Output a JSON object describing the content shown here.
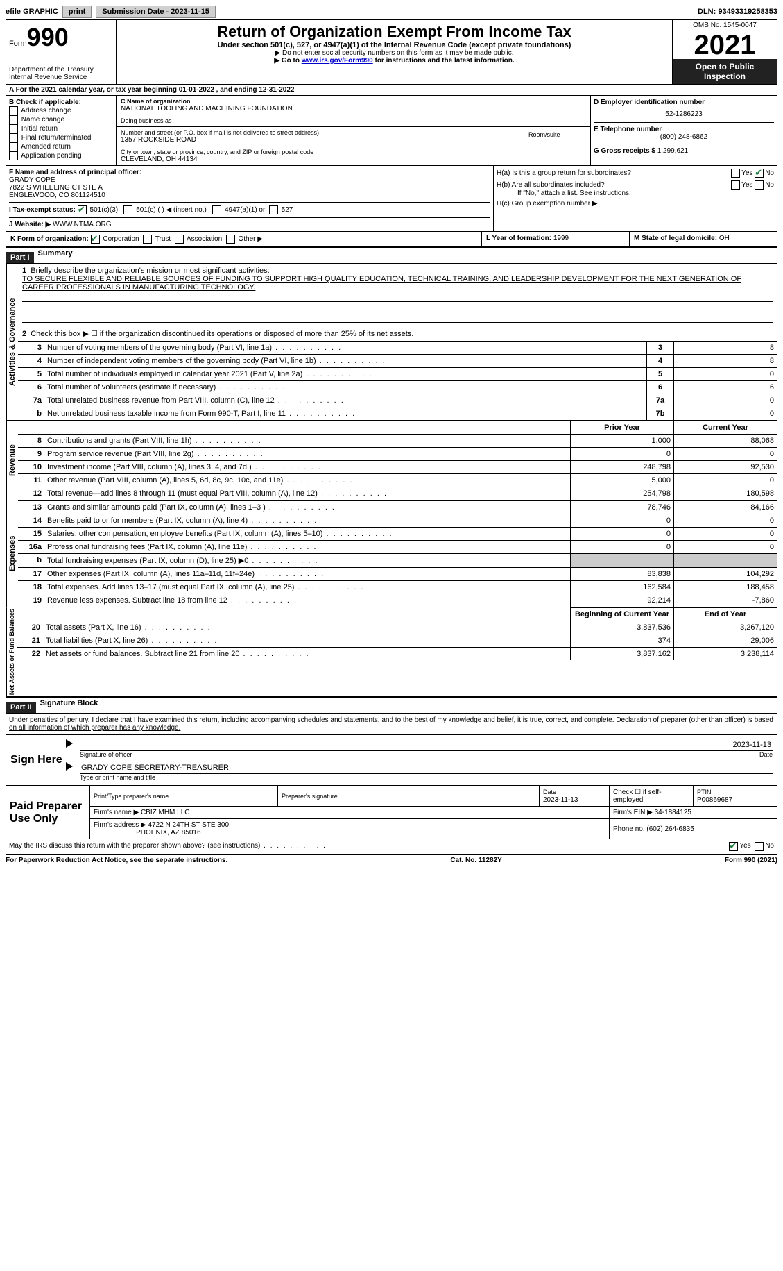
{
  "topbar": {
    "efile_label": "efile GRAPHIC",
    "print_btn": "print",
    "submission_label": "Submission Date - 2023-11-15",
    "dln_label": "DLN: 93493319258353"
  },
  "header": {
    "form_word": "Form",
    "form_number": "990",
    "dept": "Department of the Treasury",
    "irs": "Internal Revenue Service",
    "title": "Return of Organization Exempt From Income Tax",
    "subtitle": "Under section 501(c), 527, or 4947(a)(1) of the Internal Revenue Code (except private foundations)",
    "note1": "▶ Do not enter social security numbers on this form as it may be made public.",
    "note2_pre": "▶ Go to ",
    "note2_link": "www.irs.gov/Form990",
    "note2_post": " for instructions and the latest information.",
    "omb": "OMB No. 1545-0047",
    "year": "2021",
    "open_inspection": "Open to Public Inspection"
  },
  "section_a": "A For the 2021 calendar year, or tax year beginning 01-01-2022   , and ending 12-31-2022",
  "section_b": {
    "label": "B Check if applicable:",
    "items": [
      "Address change",
      "Name change",
      "Initial return",
      "Final return/terminated",
      "Amended return",
      "Application pending"
    ]
  },
  "section_c": {
    "name_label": "C Name of organization",
    "name": "NATIONAL TOOLING AND MACHINING FOUNDATION",
    "dba_label": "Doing business as",
    "addr_label": "Number and street (or P.O. box if mail is not delivered to street address)",
    "addr": "1357 ROCKSIDE ROAD",
    "room_label": "Room/suite",
    "city_label": "City or town, state or province, country, and ZIP or foreign postal code",
    "city": "CLEVELAND, OH  44134"
  },
  "section_d": {
    "label": "D Employer identification number",
    "ein": "52-1286223"
  },
  "section_e": {
    "label": "E Telephone number",
    "phone": "(800) 248-6862"
  },
  "section_g": {
    "label": "G Gross receipts $",
    "amount": "1,299,621"
  },
  "section_f": {
    "label": "F  Name and address of principal officer:",
    "name": "GRADY COPE",
    "addr1": "7822 S WHEELING CT STE A",
    "addr2": "ENGLEWOOD, CO  801124510"
  },
  "section_h": {
    "ha": "H(a)  Is this a group return for subordinates?",
    "hb": "H(b)  Are all subordinates included?",
    "hb_note": "If \"No,\" attach a list. See instructions.",
    "hc": "H(c)  Group exemption number ▶",
    "yes": "Yes",
    "no": "No"
  },
  "section_i": {
    "label": "I   Tax-exempt status:",
    "opt1": "501(c)(3)",
    "opt2": "501(c) (  ) ◀ (insert no.)",
    "opt3": "4947(a)(1) or",
    "opt4": "527"
  },
  "section_j": {
    "label": "J   Website: ▶",
    "value": "WWW.NTMA.ORG"
  },
  "section_k": {
    "label": "K Form of organization:",
    "corp": "Corporation",
    "trust": "Trust",
    "assoc": "Association",
    "other": "Other ▶"
  },
  "section_l": {
    "label": "L Year of formation:",
    "value": "1999"
  },
  "section_m": {
    "label": "M State of legal domicile:",
    "value": "OH"
  },
  "part1": {
    "header": "Part I",
    "title": "Summary",
    "line1_label": "Briefly describe the organization's mission or most significant activities:",
    "line1_text": "TO SECURE FLEXIBLE AND RELIABLE SOURCES OF FUNDING TO SUPPORT HIGH QUALITY EDUCATION, TECHNICAL TRAINING, AND LEADERSHIP DEVELOPMENT FOR THE NEXT GENERATION OF CAREER PROFESSIONALS IN MANUFACTURING TECHNOLOGY.",
    "line2": "Check this box ▶ ☐  if the organization discontinued its operations or disposed of more than 25% of its net assets.",
    "vlabels": {
      "ag": "Activities & Governance",
      "rev": "Revenue",
      "exp": "Expenses",
      "na": "Net Assets or Fund Balances"
    },
    "rows_ag": [
      {
        "n": "3",
        "label": "Number of voting members of the governing body (Part VI, line 1a)",
        "box": "3",
        "val": "8"
      },
      {
        "n": "4",
        "label": "Number of independent voting members of the governing body (Part VI, line 1b)",
        "box": "4",
        "val": "8"
      },
      {
        "n": "5",
        "label": "Total number of individuals employed in calendar year 2021 (Part V, line 2a)",
        "box": "5",
        "val": "0"
      },
      {
        "n": "6",
        "label": "Total number of volunteers (estimate if necessary)",
        "box": "6",
        "val": "6"
      },
      {
        "n": "7a",
        "label": "Total unrelated business revenue from Part VIII, column (C), line 12",
        "box": "7a",
        "val": "0"
      },
      {
        "n": " b",
        "label": "Net unrelated business taxable income from Form 990-T, Part I, line 11",
        "box": "7b",
        "val": "0"
      }
    ],
    "prior_year": "Prior Year",
    "current_year": "Current Year",
    "rows_rev": [
      {
        "n": "8",
        "label": "Contributions and grants (Part VIII, line 1h)",
        "py": "1,000",
        "cy": "88,068"
      },
      {
        "n": "9",
        "label": "Program service revenue (Part VIII, line 2g)",
        "py": "0",
        "cy": "0"
      },
      {
        "n": "10",
        "label": "Investment income (Part VIII, column (A), lines 3, 4, and 7d )",
        "py": "248,798",
        "cy": "92,530"
      },
      {
        "n": "11",
        "label": "Other revenue (Part VIII, column (A), lines 5, 6d, 8c, 9c, 10c, and 11e)",
        "py": "5,000",
        "cy": "0"
      },
      {
        "n": "12",
        "label": "Total revenue—add lines 8 through 11 (must equal Part VIII, column (A), line 12)",
        "py": "254,798",
        "cy": "180,598"
      }
    ],
    "rows_exp": [
      {
        "n": "13",
        "label": "Grants and similar amounts paid (Part IX, column (A), lines 1–3 )",
        "py": "78,746",
        "cy": "84,166"
      },
      {
        "n": "14",
        "label": "Benefits paid to or for members (Part IX, column (A), line 4)",
        "py": "0",
        "cy": "0"
      },
      {
        "n": "15",
        "label": "Salaries, other compensation, employee benefits (Part IX, column (A), lines 5–10)",
        "py": "0",
        "cy": "0"
      },
      {
        "n": "16a",
        "label": "Professional fundraising fees (Part IX, column (A), line 11e)",
        "py": "0",
        "cy": "0"
      },
      {
        "n": "b",
        "label": "Total fundraising expenses (Part IX, column (D), line 25) ▶0",
        "py": "__gray__",
        "cy": "__gray__"
      },
      {
        "n": "17",
        "label": "Other expenses (Part IX, column (A), lines 11a–11d, 11f–24e)",
        "py": "83,838",
        "cy": "104,292"
      },
      {
        "n": "18",
        "label": "Total expenses. Add lines 13–17 (must equal Part IX, column (A), line 25)",
        "py": "162,584",
        "cy": "188,458"
      },
      {
        "n": "19",
        "label": "Revenue less expenses. Subtract line 18 from line 12",
        "py": "92,214",
        "cy": "-7,860"
      }
    ],
    "bcy": "Beginning of Current Year",
    "eoy": "End of Year",
    "rows_na": [
      {
        "n": "20",
        "label": "Total assets (Part X, line 16)",
        "py": "3,837,536",
        "cy": "3,267,120"
      },
      {
        "n": "21",
        "label": "Total liabilities (Part X, line 26)",
        "py": "374",
        "cy": "29,006"
      },
      {
        "n": "22",
        "label": "Net assets or fund balances. Subtract line 21 from line 20",
        "py": "3,837,162",
        "cy": "3,238,114"
      }
    ]
  },
  "part2": {
    "header": "Part II",
    "title": "Signature Block",
    "perjury": "Under penalties of perjury, I declare that I have examined this return, including accompanying schedules and statements, and to the best of my knowledge and belief, it is true, correct, and complete. Declaration of preparer (other than officer) is based on all information of which preparer has any knowledge.",
    "sign_here": "Sign Here",
    "sig_officer": "Signature of officer",
    "sig_date": "2023-11-13",
    "date_label": "Date",
    "officer_name": "GRADY COPE  SECRETARY-TREASURER",
    "type_name": "Type or print name and title",
    "paid_prep": "Paid Preparer Use Only",
    "prep_name_label": "Print/Type preparer's name",
    "prep_sig_label": "Preparer's signature",
    "prep_date_label": "Date",
    "prep_date": "2023-11-13",
    "check_self": "Check ☐ if self-employed",
    "ptin_label": "PTIN",
    "ptin": "P00869687",
    "firm_name_label": "Firm's name    ▶",
    "firm_name": "CBIZ MHM LLC",
    "firm_ein_label": "Firm's EIN ▶",
    "firm_ein": "34-1884125",
    "firm_addr_label": "Firm's address ▶",
    "firm_addr1": "4722 N 24TH ST STE 300",
    "firm_addr2": "PHOENIX, AZ  85016",
    "phone_label": "Phone no.",
    "phone": "(602) 264-6835",
    "discuss": "May the IRS discuss this return with the preparer shown above? (see instructions)",
    "yes": "Yes",
    "no": "No"
  },
  "footer": {
    "pra": "For Paperwork Reduction Act Notice, see the separate instructions.",
    "cat": "Cat. No. 11282Y",
    "form": "Form 990 (2021)"
  }
}
